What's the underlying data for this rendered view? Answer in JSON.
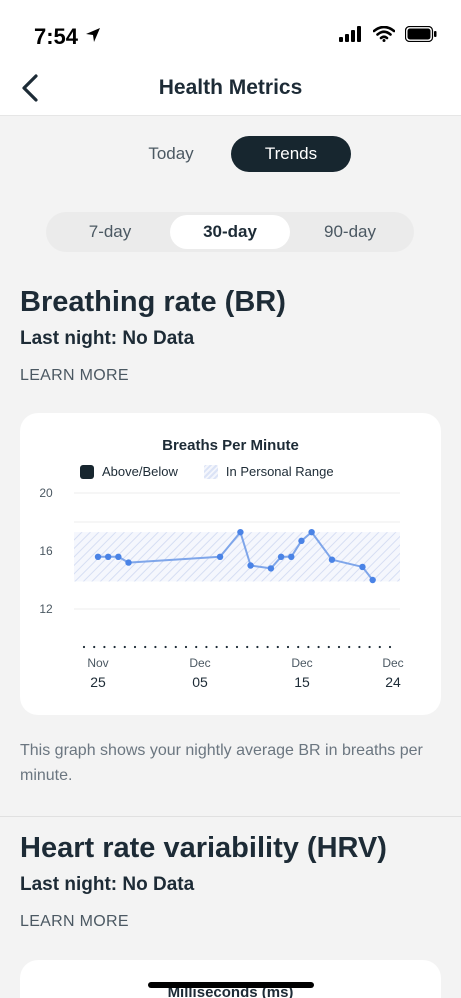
{
  "status": {
    "time": "7:54"
  },
  "nav": {
    "title": "Health Metrics"
  },
  "view_tabs": [
    {
      "label": "Today",
      "active": false
    },
    {
      "label": "Trends",
      "active": true
    }
  ],
  "range_tabs": [
    {
      "label": "7-day",
      "active": false
    },
    {
      "label": "30-day",
      "active": true
    },
    {
      "label": "90-day",
      "active": false
    }
  ],
  "br": {
    "title": "Breathing rate (BR)",
    "last_night": "Last night: No Data",
    "learn_more": "LEARN MORE",
    "chart_title": "Breaths Per Minute",
    "legend": [
      "Above/Below",
      "In Personal Range"
    ],
    "description": "This graph shows your nightly average BR in breaths per minute."
  },
  "hrv": {
    "title": "Heart rate variability (HRV)",
    "last_night": "Last night: No Data",
    "learn_more": "LEARN MORE",
    "chart_title": "Milliseconds (ms)"
  },
  "colors": {
    "accent": "#17262f",
    "line": "#7fa6ea",
    "point": "#4a83e6",
    "range": "#dbe3f6"
  },
  "chart_data": {
    "type": "line",
    "title": "Breaths Per Minute",
    "xlabel": "",
    "ylabel": "",
    "ylim": [
      12,
      20
    ],
    "y_ticks": [
      "20",
      "16",
      "12"
    ],
    "x_ticks": [
      {
        "month": "Nov",
        "day": "25"
      },
      {
        "month": "Dec",
        "day": "05"
      },
      {
        "month": "Dec",
        "day": "15"
      },
      {
        "month": "Dec",
        "day": "24"
      }
    ],
    "personal_range": [
      13.9,
      17.3
    ],
    "series": [
      {
        "values": [
          {
            "x": "Nov 25",
            "y": 15.6
          },
          {
            "x": "Nov 26",
            "y": 15.6
          },
          {
            "x": "Nov 27",
            "y": 15.6
          },
          {
            "x": "Nov 28",
            "y": 15.2
          },
          {
            "x": "Dec 07",
            "y": 15.6
          },
          {
            "x": "Dec 09",
            "y": 17.3
          },
          {
            "x": "Dec 10",
            "y": 15.0
          },
          {
            "x": "Dec 12",
            "y": 14.8
          },
          {
            "x": "Dec 13",
            "y": 15.6
          },
          {
            "x": "Dec 14",
            "y": 15.6
          },
          {
            "x": "Dec 15",
            "y": 16.7
          },
          {
            "x": "Dec 16",
            "y": 17.3
          },
          {
            "x": "Dec 18",
            "y": 15.4
          },
          {
            "x": "Dec 21",
            "y": 14.9
          },
          {
            "x": "Dec 22",
            "y": 14.0
          }
        ]
      }
    ],
    "legend": [
      "Above/Below",
      "In Personal Range"
    ],
    "grid": true,
    "legend_position": "top"
  }
}
